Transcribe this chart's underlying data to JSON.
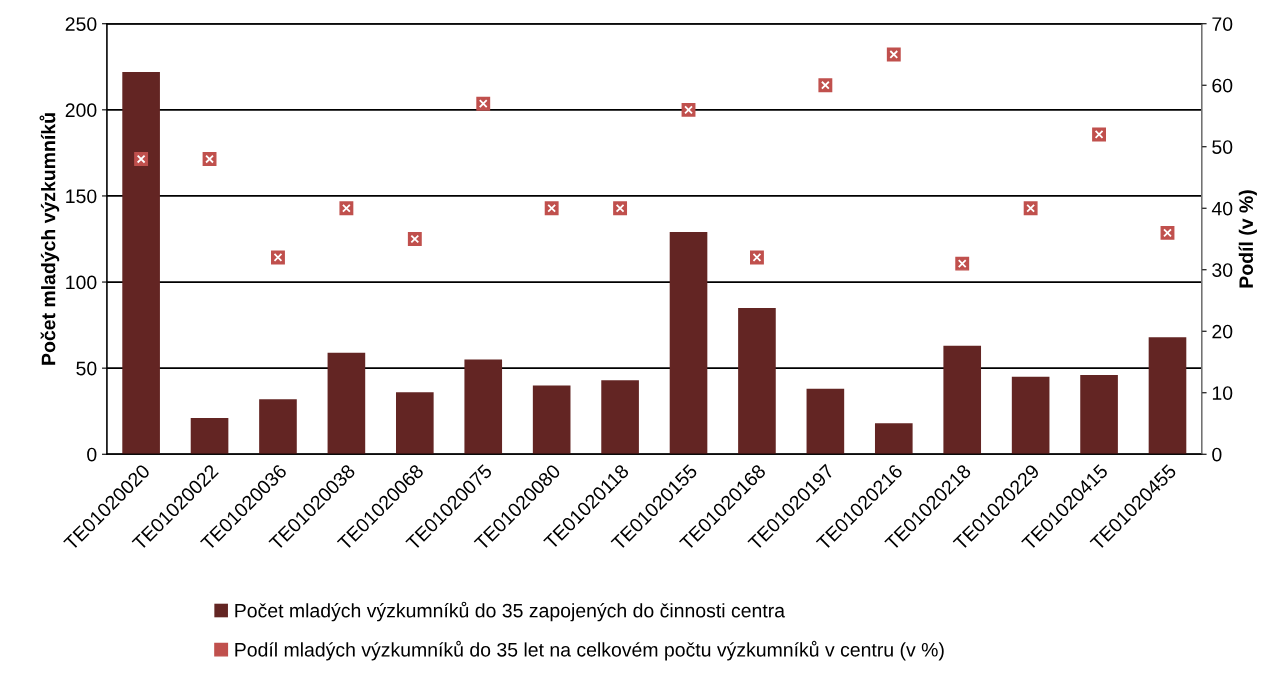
{
  "chart_data": {
    "type": "bar",
    "categories": [
      "TE01020020",
      "TE01020022",
      "TE01020036",
      "TE01020038",
      "TE01020068",
      "TE01020075",
      "TE01020080",
      "TE01020118",
      "TE01020155",
      "TE01020168",
      "TE01020197",
      "TE01020216",
      "TE01020218",
      "TE01020229",
      "TE01020415",
      "TE01020455"
    ],
    "series": [
      {
        "name": "Počet mladých výzkumníků do 35 zapojených do činnosti centra",
        "color": "#632523",
        "values": [
          222,
          21,
          32,
          59,
          36,
          55,
          40,
          43,
          129,
          85,
          38,
          18,
          63,
          45,
          46,
          68
        ]
      },
      {
        "name": "Podíl mladých výzkumníků do 35 let na celkovém počtu výzkumníků v centru (v %)",
        "type": "scatter",
        "axis": "y2",
        "marker": "square",
        "color": "#c0504d",
        "values": [
          48,
          48,
          32,
          40,
          35,
          57,
          40,
          40,
          56,
          32,
          60,
          65,
          31,
          40,
          52,
          36
        ]
      }
    ],
    "ylabel": "Počet mladých výzkumníků",
    "y2label": "Podíl (v %)",
    "ylim": [
      0,
      250
    ],
    "yticks": [
      0,
      50,
      100,
      150,
      200,
      250
    ],
    "y2lim": [
      0,
      70
    ],
    "y2ticks": [
      0,
      10,
      20,
      30,
      40,
      50,
      60,
      70
    ],
    "grid": "y",
    "legend": "bottom"
  }
}
